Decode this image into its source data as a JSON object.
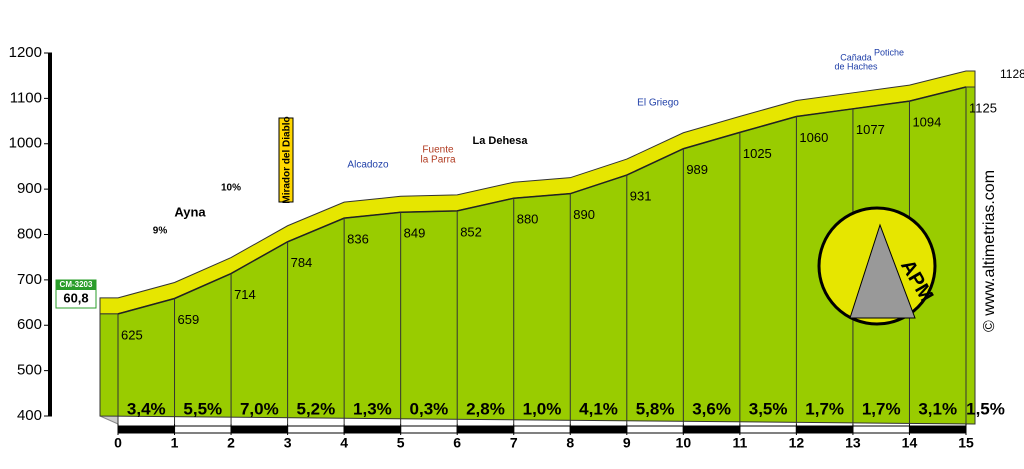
{
  "chart_data": {
    "type": "profile",
    "x": [
      0,
      1,
      2,
      3,
      4,
      5,
      6,
      7,
      8,
      9,
      10,
      11,
      12,
      13,
      14,
      15
    ],
    "values": [
      625,
      659,
      714,
      784,
      836,
      849,
      852,
      880,
      890,
      931,
      989,
      1025,
      1060,
      1077,
      1094,
      1125
    ],
    "gradients": [
      {
        "value": 3.4,
        "label": "3,4%"
      },
      {
        "value": 5.5,
        "label": "5,5%"
      },
      {
        "value": 7.0,
        "label": "7,0%"
      },
      {
        "value": 5.2,
        "label": "5,2%"
      },
      {
        "value": 1.3,
        "label": "1,3%"
      },
      {
        "value": 0.3,
        "label": "0,3%"
      },
      {
        "value": 2.8,
        "label": "2,8%"
      },
      {
        "value": 1.0,
        "label": "1,0%"
      },
      {
        "value": 4.1,
        "label": "4,1%"
      },
      {
        "value": 5.8,
        "label": "5,8%"
      },
      {
        "value": 3.6,
        "label": "3,6%"
      },
      {
        "value": 3.5,
        "label": "3,5%"
      },
      {
        "value": 1.7,
        "label": "1,7%"
      },
      {
        "value": 1.7,
        "label": "1,7%"
      },
      {
        "value": 3.1,
        "label": "3,1%"
      },
      {
        "value": 1.5,
        "label": "1,5%"
      }
    ],
    "max_elevation": 1128,
    "start_road": "CM-3203",
    "start_km": "60,8",
    "xlim": [
      0,
      15
    ],
    "xticks": [
      0,
      1,
      2,
      3,
      4,
      5,
      6,
      7,
      8,
      9,
      10,
      11,
      12,
      13,
      14,
      15
    ],
    "ylim": [
      400,
      1200
    ],
    "yticks": [
      400,
      500,
      600,
      700,
      800,
      900,
      1000,
      1100,
      1200
    ],
    "color": "#99cc00",
    "top_color": "#e6e600",
    "annotations": [
      "Ayna",
      "9%",
      "10%",
      "Mirador del Diablo",
      "Alcadozo",
      "Fuente",
      "la Parra",
      "La Dehesa",
      "El Griego",
      "Cañada",
      "de Haches",
      "Potiche"
    ],
    "watermark": "© www.altimetrias.com",
    "logo": "APM"
  }
}
